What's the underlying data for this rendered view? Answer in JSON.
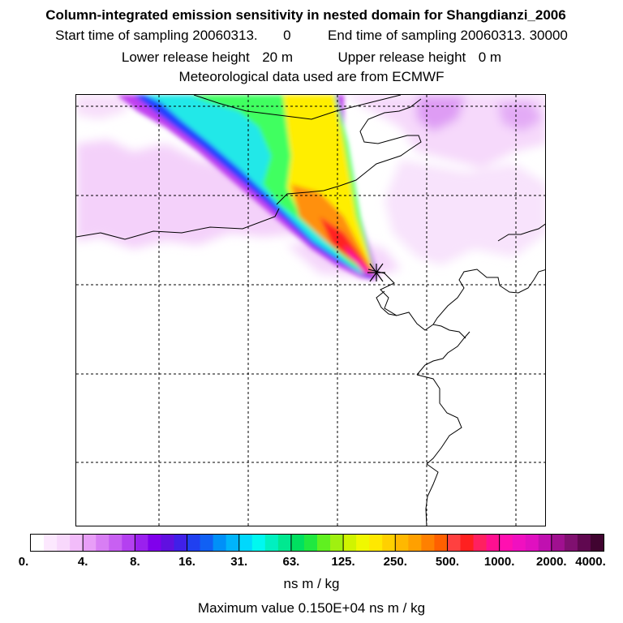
{
  "header": {
    "title": "Column-integrated emission sensitivity in nested domain for Shangdianzi_2006",
    "start_label": "Start time of sampling 20060313.",
    "start_value": "0",
    "end_label": "End time of sampling 20060313. 30000",
    "lower_label": "Lower release height",
    "lower_value": "20 m",
    "upper_label": "Upper release height",
    "upper_value": "0 m",
    "met_label": "Meteorological data used are from ECMWF"
  },
  "map": {
    "release_site_marker": "x-marker-icon",
    "plume_colors": {
      "edge_violet": "#c040f0",
      "blue": "#2040ff",
      "cyan": "#20e8e8",
      "green": "#40ff60",
      "yellow": "#ffee00",
      "orange": "#ff9010",
      "red": "#ff2020",
      "light_pink": "#f3ccfa"
    }
  },
  "colorbar": {
    "tick_labels": [
      "0.",
      "4.",
      "8.",
      "16.",
      "31.",
      "63.",
      "125.",
      "250.",
      "500.",
      "1000.",
      "2000.",
      "4000."
    ],
    "colors": [
      "#ffffff",
      "#fce8fe",
      "#f8d8fc",
      "#f2bcfa",
      "#e89ef7",
      "#d87ef4",
      "#c860f2",
      "#b440f0",
      "#9a20ee",
      "#8000ec",
      "#6010e0",
      "#4020e8",
      "#2040f0",
      "#1060f4",
      "#0090f8",
      "#00b4fa",
      "#00d8fc",
      "#00f8f0",
      "#00f0c0",
      "#00e890",
      "#00e060",
      "#20e840",
      "#60f020",
      "#a0f010",
      "#d0f400",
      "#f0f800",
      "#ffe800",
      "#ffd000",
      "#ffb800",
      "#ffa000",
      "#ff8000",
      "#ff6000",
      "#ff4040",
      "#ff2020",
      "#ff2060",
      "#ff1090",
      "#ff10b0",
      "#f010c0",
      "#e010c0",
      "#c010b0",
      "#a01090",
      "#801070",
      "#600850",
      "#400430"
    ],
    "unit": "ns m / kg",
    "max_value_text": "Maximum value  0.150E+04 ns m / kg"
  }
}
